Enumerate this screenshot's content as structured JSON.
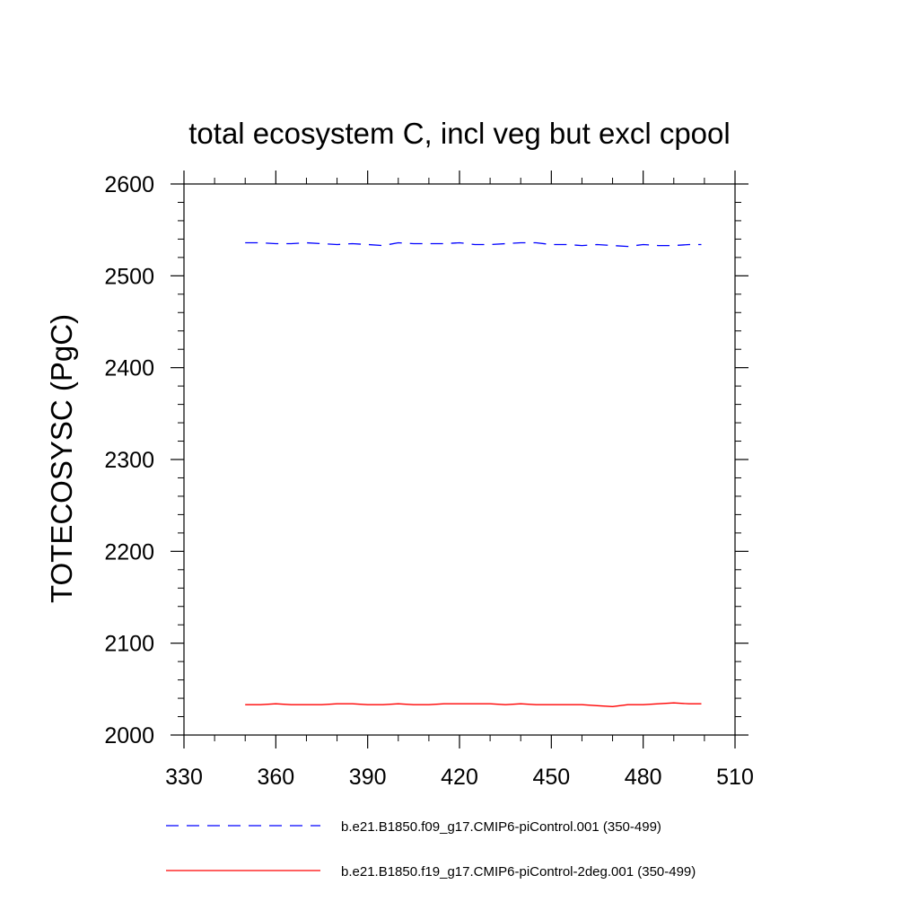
{
  "chart_data": {
    "type": "line",
    "title": "total ecosystem C, incl veg but excl cpool",
    "xlabel": "",
    "ylabel": "TOTECOSYSC  (PgC)",
    "xlim": [
      330,
      510
    ],
    "ylim": [
      2000,
      2600
    ],
    "xticks": [
      "330",
      "360",
      "390",
      "420",
      "450",
      "480",
      "510"
    ],
    "yticks": [
      "2000",
      "2100",
      "2200",
      "2300",
      "2400",
      "2500",
      "2600"
    ],
    "grid": false,
    "legend_position": "bottom",
    "x": [
      350,
      355,
      360,
      365,
      370,
      375,
      380,
      385,
      390,
      395,
      400,
      405,
      410,
      415,
      420,
      425,
      430,
      435,
      440,
      445,
      450,
      455,
      460,
      465,
      470,
      475,
      480,
      485,
      490,
      495,
      499
    ],
    "series": [
      {
        "name": "b.e21.B1850.f09_g17.CMIP6-piControl.001 (350-499)",
        "color": "#0000ff",
        "dash": "dashed",
        "values": [
          2536,
          2536,
          2535,
          2535,
          2536,
          2535,
          2534,
          2535,
          2534,
          2533,
          2536,
          2535,
          2535,
          2535,
          2536,
          2534,
          2534,
          2535,
          2536,
          2536,
          2534,
          2534,
          2533,
          2534,
          2533,
          2532,
          2534,
          2533,
          2533,
          2534,
          2534
        ]
      },
      {
        "name": "b.e21.B1850.f19_g17.CMIP6-piControl-2deg.001 (350-499)",
        "color": "#ff0000",
        "dash": "solid",
        "values": [
          2033,
          2033,
          2034,
          2033,
          2033,
          2033,
          2034,
          2034,
          2033,
          2033,
          2034,
          2033,
          2033,
          2034,
          2034,
          2034,
          2034,
          2033,
          2034,
          2033,
          2033,
          2033,
          2033,
          2032,
          2031,
          2033,
          2033,
          2034,
          2035,
          2034,
          2034
        ]
      }
    ]
  }
}
